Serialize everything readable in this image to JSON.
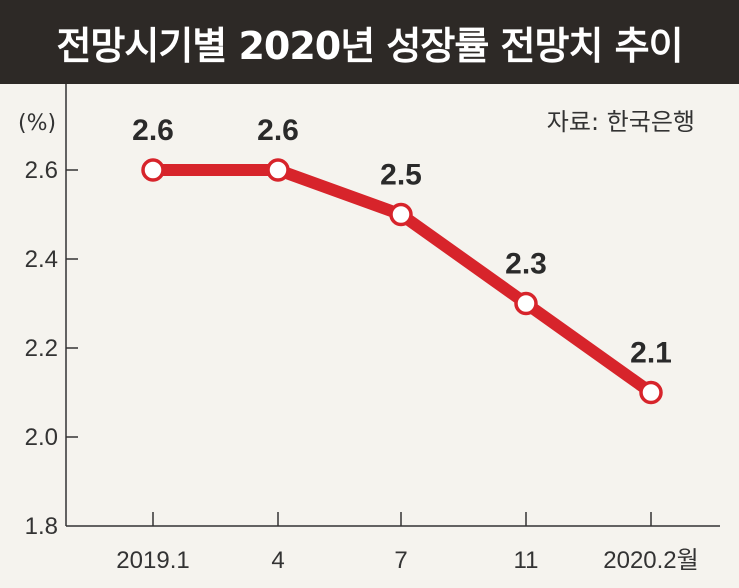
{
  "title": "전망시기별 2020년 성장률 전망치 추이",
  "unit": "(%)",
  "source": "자료: 한국은행",
  "colors": {
    "line": "#d7242b",
    "title_bg": "#2d2926",
    "background": "#f5f3ee",
    "axis": "#333333"
  },
  "chart_data": {
    "type": "line",
    "title": "전망시기별 2020년 성장률 전망치 추이",
    "xlabel": "",
    "ylabel": "(%)",
    "categories": [
      "2019.1",
      "4",
      "7",
      "11",
      "2020.2월"
    ],
    "series": [
      {
        "values": [
          2.6,
          2.6,
          2.5,
          2.3,
          2.1
        ]
      }
    ],
    "data_labels": [
      "2.6",
      "2.6",
      "2.5",
      "2.3",
      "2.1"
    ],
    "yticks": [
      "1.8",
      "2.0",
      "2.2",
      "2.4",
      "2.6"
    ],
    "ylim": [
      1.8,
      2.7
    ],
    "grid": false
  }
}
